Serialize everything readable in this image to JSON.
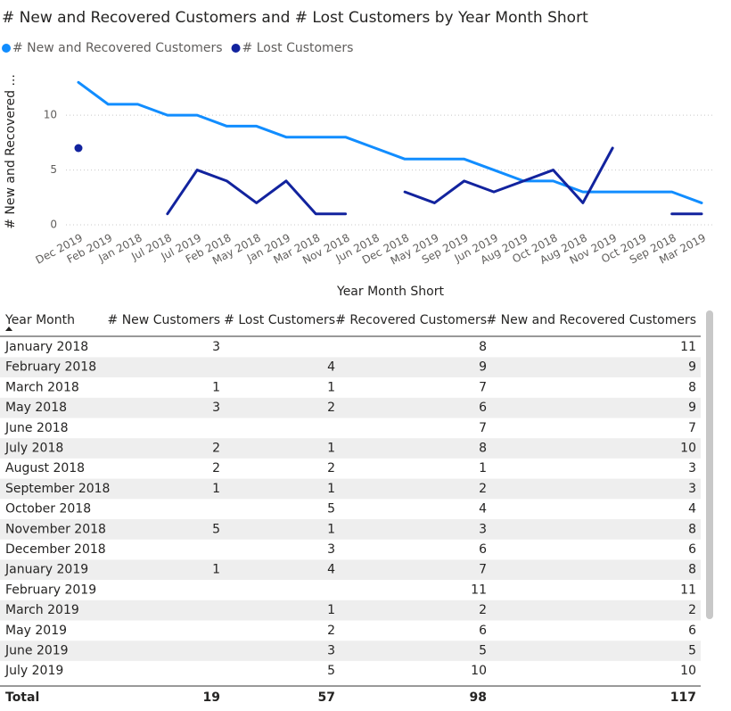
{
  "chart_data": {
    "type": "line",
    "title": "# New and Recovered Customers and # Lost Customers by Year Month Short",
    "x_label": "Year Month Short",
    "y_label": "# New and Recovered ...",
    "categories": [
      "Dec 2019",
      "Feb 2019",
      "Jan 2018",
      "Jul 2018",
      "Jul 2019",
      "Feb 2018",
      "May 2018",
      "Jan 2019",
      "Mar 2018",
      "Nov 2018",
      "Jun 2018",
      "Dec 2018",
      "May 2019",
      "Sep 2019",
      "Jun 2019",
      "Aug 2019",
      "Oct 2018",
      "Aug 2018",
      "Nov 2019",
      "Oct 2019",
      "Sep 2018",
      "Mar 2019"
    ],
    "series": [
      {
        "name": "# New and Recovered Customers",
        "color": "#118DFF",
        "values": [
          13,
          11,
          11,
          10,
          10,
          9,
          9,
          8,
          8,
          8,
          7,
          6,
          6,
          6,
          5,
          4,
          4,
          3,
          3,
          3,
          3,
          2
        ]
      },
      {
        "name": "# Lost Customers",
        "color": "#12239E",
        "values": [
          7,
          null,
          null,
          1,
          5,
          4,
          2,
          4,
          1,
          1,
          null,
          3,
          2,
          4,
          3,
          4,
          5,
          2,
          7,
          null,
          1,
          1
        ]
      }
    ],
    "ylim": [
      0,
      14
    ],
    "yticks": [
      0,
      5,
      10
    ],
    "grid": true
  },
  "table": {
    "columns": [
      "Year Month",
      "# New Customers",
      "# Lost Customers",
      "# Recovered Customers",
      "# New and Recovered Customers"
    ],
    "rows": [
      [
        "January 2018",
        3,
        null,
        8,
        11
      ],
      [
        "February 2018",
        null,
        4,
        9,
        9
      ],
      [
        "March 2018",
        1,
        1,
        7,
        8
      ],
      [
        "May 2018",
        3,
        2,
        6,
        9
      ],
      [
        "June 2018",
        null,
        null,
        7,
        7
      ],
      [
        "July 2018",
        2,
        1,
        8,
        10
      ],
      [
        "August 2018",
        2,
        2,
        1,
        3
      ],
      [
        "September 2018",
        1,
        1,
        2,
        3
      ],
      [
        "October 2018",
        null,
        5,
        4,
        4
      ],
      [
        "November 2018",
        5,
        1,
        3,
        8
      ],
      [
        "December 2018",
        null,
        3,
        6,
        6
      ],
      [
        "January 2019",
        1,
        4,
        7,
        8
      ],
      [
        "February 2019",
        null,
        null,
        11,
        11
      ],
      [
        "March 2019",
        null,
        1,
        2,
        2
      ],
      [
        "May 2019",
        null,
        2,
        6,
        6
      ],
      [
        "June 2019",
        null,
        3,
        5,
        5
      ],
      [
        "July 2019",
        null,
        5,
        10,
        10
      ]
    ],
    "total": [
      "Total",
      19,
      57,
      98,
      117
    ]
  }
}
